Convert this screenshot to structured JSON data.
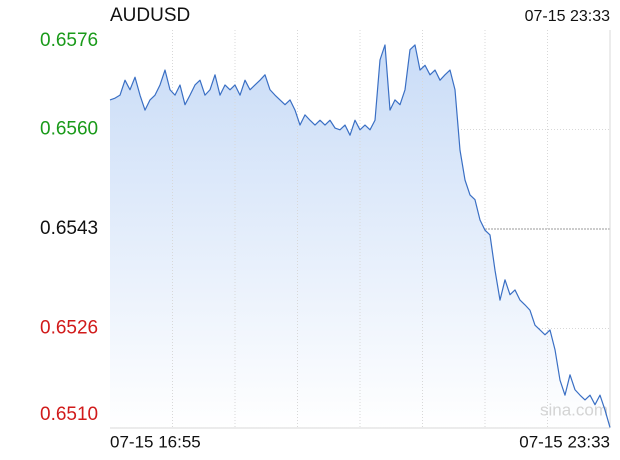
{
  "chart_data": {
    "type": "line",
    "title": "AUDUSD",
    "timestamp": "07-15 23:33",
    "watermark": "sina.com",
    "x_labels": [
      "07-15 16:55",
      "07-15 23:33"
    ],
    "ylim": [
      0.65096,
      0.65762
    ],
    "yticks": [
      {
        "value": 0.65762,
        "label": "0.6576"
      },
      {
        "value": 0.655955,
        "label": "0.6560"
      },
      {
        "value": 0.65429,
        "label": "0.6543"
      },
      {
        "value": 0.652625,
        "label": "0.6526"
      },
      {
        "value": 0.65096,
        "label": "0.6510"
      }
    ],
    "ytick_colors": [
      "#1a9a1a",
      "#1a9a1a",
      "#111111",
      "#d11a1a",
      "#d11a1a"
    ],
    "color": "#3a6fc4",
    "grid": true,
    "series": [
      {
        "name": "AUDUSD",
        "color": "#3a6fc4",
        "values": [
          0.65645,
          0.65648,
          0.65653,
          0.65678,
          0.65662,
          0.65683,
          0.65653,
          0.65628,
          0.65645,
          0.65653,
          0.6567,
          0.65695,
          0.65662,
          0.65653,
          0.6567,
          0.65637,
          0.65653,
          0.6567,
          0.65678,
          0.65653,
          0.65662,
          0.65687,
          0.65653,
          0.6567,
          0.65662,
          0.6567,
          0.65653,
          0.65678,
          0.65662,
          0.6567,
          0.65678,
          0.65687,
          0.65662,
          0.65653,
          0.65645,
          0.65637,
          0.65645,
          0.65628,
          0.65603,
          0.6562,
          0.65611,
          0.65603,
          0.65611,
          0.65603,
          0.65611,
          0.65598,
          0.65595,
          0.65603,
          0.65586,
          0.65611,
          0.65595,
          0.65603,
          0.65595,
          0.65611,
          0.65712,
          0.65737,
          0.65628,
          0.65645,
          0.65637,
          0.65662,
          0.65729,
          0.65737,
          0.65695,
          0.65703,
          0.65687,
          0.65695,
          0.65678,
          0.65687,
          0.65695,
          0.65662,
          0.65561,
          0.65511,
          0.65486,
          0.65478,
          0.65444,
          0.65427,
          0.65419,
          0.6536,
          0.6531,
          0.65344,
          0.65319,
          0.65327,
          0.6531,
          0.65302,
          0.65293,
          0.65268,
          0.6526,
          0.65252,
          0.6526,
          0.65227,
          0.65176,
          0.65151,
          0.65185,
          0.6516,
          0.65151,
          0.65143,
          0.65151,
          0.65135,
          0.65151,
          0.65126,
          0.65097
        ]
      }
    ]
  }
}
